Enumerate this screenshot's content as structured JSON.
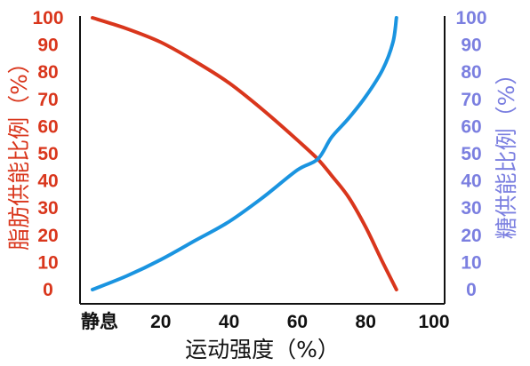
{
  "chart_data": {
    "type": "line",
    "xlabel": "运动强度（%）",
    "xlim": [
      0,
      100
    ],
    "x_ticks": [
      "静息",
      "20",
      "40",
      "60",
      "80",
      "100"
    ],
    "y_left": {
      "label": "脂肪供能比例（%）",
      "range": [
        0,
        100
      ],
      "ticks": [
        "0",
        "10",
        "20",
        "30",
        "40",
        "50",
        "60",
        "70",
        "80",
        "90",
        "100"
      ],
      "color": "#d9361c"
    },
    "y_right": {
      "label": "糖供能比例（%）",
      "range": [
        0,
        100
      ],
      "ticks": [
        "0",
        "10",
        "20",
        "30",
        "40",
        "50",
        "60",
        "70",
        "80",
        "90",
        "100"
      ],
      "color": "#7b7fe0"
    },
    "series": [
      {
        "axis": "left",
        "color": "#d9361c",
        "points": [
          [
            0,
            100
          ],
          [
            10,
            96
          ],
          [
            20,
            91
          ],
          [
            30,
            84
          ],
          [
            40,
            76
          ],
          [
            50,
            66
          ],
          [
            60,
            55
          ],
          [
            66,
            48
          ],
          [
            70,
            42
          ],
          [
            75,
            34
          ],
          [
            80,
            23
          ],
          [
            85,
            10
          ],
          [
            89,
            0
          ]
        ]
      },
      {
        "axis": "right",
        "color": "#1a94e0",
        "points": [
          [
            0,
            0
          ],
          [
            10,
            5
          ],
          [
            20,
            11
          ],
          [
            30,
            18
          ],
          [
            40,
            25
          ],
          [
            50,
            34
          ],
          [
            60,
            44
          ],
          [
            66,
            48
          ],
          [
            70,
            56
          ],
          [
            75,
            63
          ],
          [
            80,
            71
          ],
          [
            85,
            81
          ],
          [
            88,
            91
          ],
          [
            89,
            100
          ]
        ]
      }
    ],
    "grid": false
  }
}
